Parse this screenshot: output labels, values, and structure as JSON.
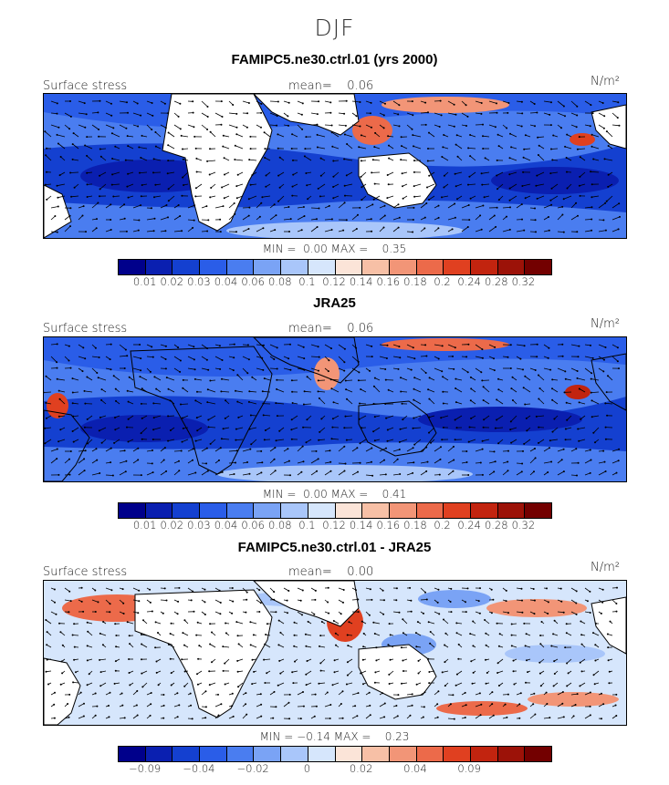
{
  "figure": {
    "season": "DJF"
  },
  "panels": [
    {
      "title": "FAMIPC5.ne30.ctrl.01 (yrs 2000)",
      "field_label": "Surface stress",
      "mean_label": "mean=",
      "mean_value": "0.06",
      "units": "N/m²",
      "min_label": "MIN =",
      "min_value": "0.00",
      "max_label": "MAX =",
      "max_value": "0.35",
      "colorbar": {
        "colors": [
          "#00008b",
          "#0a1fb0",
          "#1440d0",
          "#2a5de8",
          "#4a7df0",
          "#7aa3f5",
          "#a9c6fa",
          "#d6e6fc",
          "#fbe4d8",
          "#f7c0a6",
          "#f29577",
          "#ec6a4a",
          "#e04020",
          "#c2240f",
          "#9c1208",
          "#730000"
        ],
        "tick_labels": [
          "0.01",
          "0.02",
          "0.03",
          "0.04",
          "0.06",
          "0.08",
          "0.1",
          "0.12",
          "0.14",
          "0.16",
          "0.18",
          "0.2",
          "0.24",
          "0.28",
          "0.32"
        ]
      }
    },
    {
      "title": "JRA25",
      "field_label": "Surface stress",
      "mean_label": "mean=",
      "mean_value": "0.06",
      "units": "N/m²",
      "min_label": "MIN =",
      "min_value": "0.00",
      "max_label": "MAX =",
      "max_value": "0.41",
      "colorbar": {
        "colors": [
          "#00008b",
          "#0a1fb0",
          "#1440d0",
          "#2a5de8",
          "#4a7df0",
          "#7aa3f5",
          "#a9c6fa",
          "#d6e6fc",
          "#fbe4d8",
          "#f7c0a6",
          "#f29577",
          "#ec6a4a",
          "#e04020",
          "#c2240f",
          "#9c1208",
          "#730000"
        ],
        "tick_labels": [
          "0.01",
          "0.02",
          "0.03",
          "0.04",
          "0.06",
          "0.08",
          "0.1",
          "0.12",
          "0.14",
          "0.16",
          "0.18",
          "0.2",
          "0.24",
          "0.28",
          "0.32"
        ]
      }
    },
    {
      "title": "FAMIPC5.ne30.ctrl.01 - JRA25",
      "field_label": "Surface stress",
      "mean_label": "mean=",
      "mean_value": "0.00",
      "units": "N/m²",
      "min_label": "MIN =",
      "min_value": "−0.14",
      "max_label": "MAX =",
      "max_value": "0.23",
      "colorbar": {
        "colors": [
          "#00008b",
          "#0a1fb0",
          "#1440d0",
          "#2a5de8",
          "#4a7df0",
          "#7aa3f5",
          "#a9c6fa",
          "#d6e6fc",
          "#fbe4d8",
          "#f7c0a6",
          "#f29577",
          "#ec6a4a",
          "#e04020",
          "#c2240f",
          "#9c1208",
          "#730000"
        ],
        "tick_labels": [
          "−0.09",
          "−0.04",
          "−0.02",
          "0",
          "0.02",
          "0.04",
          "0.09"
        ]
      }
    }
  ],
  "chart_data": [
    {
      "type": "heatmap",
      "title": "FAMIPC5.ne30.ctrl.01 (yrs 2000)",
      "subtitle": "DJF",
      "variable": "Surface stress",
      "units": "N/m²",
      "mean": 0.06,
      "min": 0.0,
      "max": 0.35,
      "levels": [
        0.01,
        0.02,
        0.03,
        0.04,
        0.06,
        0.08,
        0.1,
        0.12,
        0.14,
        0.16,
        0.18,
        0.2,
        0.24,
        0.28,
        0.32
      ],
      "overlay": "wind stress vectors"
    },
    {
      "type": "heatmap",
      "title": "JRA25",
      "subtitle": "DJF",
      "variable": "Surface stress",
      "units": "N/m²",
      "mean": 0.06,
      "min": 0.0,
      "max": 0.41,
      "levels": [
        0.01,
        0.02,
        0.03,
        0.04,
        0.06,
        0.08,
        0.1,
        0.12,
        0.14,
        0.16,
        0.18,
        0.2,
        0.24,
        0.28,
        0.32
      ],
      "overlay": "wind stress vectors"
    },
    {
      "type": "heatmap",
      "title": "FAMIPC5.ne30.ctrl.01 - JRA25",
      "subtitle": "DJF",
      "variable": "Surface stress",
      "units": "N/m²",
      "mean": 0.0,
      "min": -0.14,
      "max": 0.23,
      "levels": [
        -0.09,
        -0.04,
        -0.02,
        0,
        0.02,
        0.04,
        0.09
      ],
      "overlay": "wind stress difference vectors"
    }
  ]
}
